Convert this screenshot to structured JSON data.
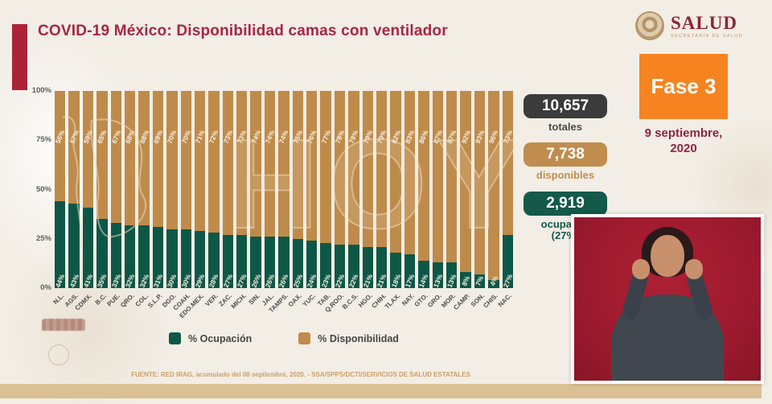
{
  "header": {
    "title": "COVID-19 México: Disponibilidad camas con ventilador",
    "logo_name": "SALUD",
    "logo_subtitle": "SECRETARÍA DE SALUD",
    "phase_badge": "Fase 3",
    "date_line1": "9 septiembre,",
    "date_line2": "2020"
  },
  "stats": [
    {
      "value": "10,657",
      "label": "totales",
      "box_color": "#3b3b3b",
      "label_color": "#4a4a4a"
    },
    {
      "value": "7,738",
      "label": "disponibles",
      "box_color": "#c08d4e",
      "label_color": "#c08d4e"
    },
    {
      "value": "2,919",
      "label": "ocupadas",
      "sublabel": "(27%)",
      "box_color": "#14594a",
      "label_color": "#14594a"
    }
  ],
  "chart_data": {
    "type": "bar",
    "stacked": true,
    "title": "COVID-19 México: Disponibilidad camas con ventilador",
    "xlabel": "",
    "ylabel": "",
    "ylim": [
      0,
      100
    ],
    "y_ticks": [
      "100%",
      "75%",
      "50%",
      "25%",
      "0%"
    ],
    "grid": false,
    "legend_position": "bottom",
    "watermark": "HOY",
    "categories": [
      "N.L.",
      "AGS.",
      "CDMX.",
      "B.C.",
      "PUE.",
      "QRO.",
      "COL.",
      "S.L.P.",
      "DGO.",
      "COAH.",
      "EDO.MEX.",
      "VER.",
      "ZAC.",
      "MICH.",
      "SIN.",
      "JAL.",
      "TAMPS.",
      "OAX.",
      "YUC.",
      "TAB.",
      "Q.ROO.",
      "B.C.S.",
      "HGO.",
      "CHIH.",
      "TLAX.",
      "NAY.",
      "GTO.",
      "GRO.",
      "MOR.",
      "CAMP.",
      "SON.",
      "CHIS.",
      "NAC."
    ],
    "series": [
      {
        "name": "% Ocupación",
        "color": "#0d5747",
        "values": [
          44,
          43,
          41,
          35,
          33,
          32,
          32,
          31,
          30,
          30,
          29,
          28,
          27,
          27,
          26,
          26,
          26,
          25,
          24,
          23,
          22,
          22,
          21,
          21,
          18,
          17,
          14,
          13,
          13,
          8,
          7,
          4,
          27
        ]
      },
      {
        "name": "% Disponibilidad",
        "color": "#bf8b4b",
        "values": [
          56,
          57,
          59,
          65,
          67,
          68,
          68,
          69,
          70,
          70,
          71,
          72,
          73,
          73,
          74,
          74,
          74,
          75,
          76,
          77,
          78,
          78,
          79,
          79,
          82,
          83,
          86,
          87,
          87,
          92,
          93,
          96,
          73
        ]
      }
    ]
  },
  "footer": {
    "source": "FUENTE: RED IRAG, acumulado del 08 septiembre, 2020. -  SSA/SPPS/DCTI/SERVICIOS DE SALUD ESTATALES"
  }
}
